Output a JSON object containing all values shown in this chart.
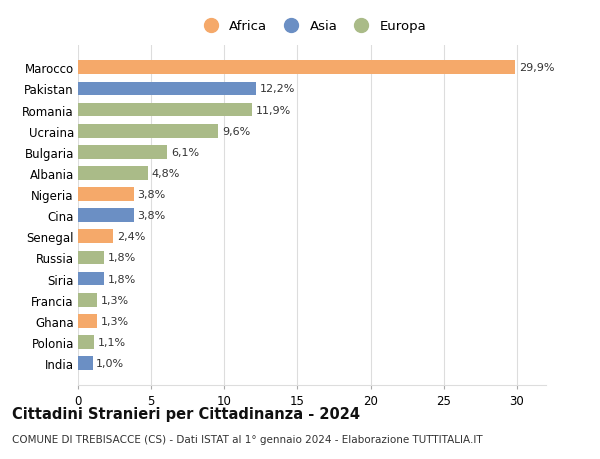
{
  "countries": [
    "India",
    "Polonia",
    "Ghana",
    "Francia",
    "Siria",
    "Russia",
    "Senegal",
    "Cina",
    "Nigeria",
    "Albania",
    "Bulgaria",
    "Ucraina",
    "Romania",
    "Pakistan",
    "Marocco"
  ],
  "values": [
    1.0,
    1.1,
    1.3,
    1.3,
    1.8,
    1.8,
    2.4,
    3.8,
    3.8,
    4.8,
    6.1,
    9.6,
    11.9,
    12.2,
    29.9
  ],
  "labels": [
    "1,0%",
    "1,1%",
    "1,3%",
    "1,3%",
    "1,8%",
    "1,8%",
    "2,4%",
    "3,8%",
    "3,8%",
    "4,8%",
    "6,1%",
    "9,6%",
    "11,9%",
    "12,2%",
    "29,9%"
  ],
  "continents": [
    "Asia",
    "Europa",
    "Africa",
    "Europa",
    "Asia",
    "Europa",
    "Africa",
    "Asia",
    "Africa",
    "Europa",
    "Europa",
    "Europa",
    "Europa",
    "Asia",
    "Africa"
  ],
  "colors": {
    "Africa": "#F5A96A",
    "Asia": "#6B8FC4",
    "Europa": "#AABB88"
  },
  "title": "Cittadini Stranieri per Cittadinanza - 2024",
  "subtitle": "COMUNE DI TREBISACCE (CS) - Dati ISTAT al 1° gennaio 2024 - Elaborazione TUTTITALIA.IT",
  "xlim": [
    0,
    32
  ],
  "xticks": [
    0,
    5,
    10,
    15,
    20,
    25,
    30
  ],
  "background_color": "#ffffff",
  "bar_height": 0.65,
  "grid_color": "#dddddd",
  "label_fontsize": 8,
  "ytick_fontsize": 8.5,
  "xtick_fontsize": 8.5,
  "title_fontsize": 10.5,
  "subtitle_fontsize": 7.5
}
